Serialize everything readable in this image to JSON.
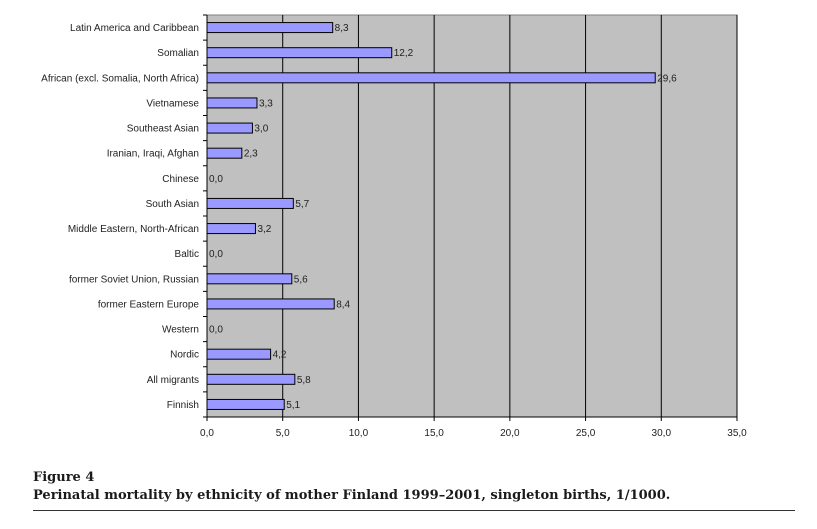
{
  "caption": {
    "figure_label": "Figure 4",
    "title": "Perinatal mortality by ethnicity of mother Finland 1999–2001, singleton births, 1/1000."
  },
  "chart_data": {
    "type": "bar",
    "orientation": "horizontal",
    "categories": [
      "Latin America and Caribbean",
      "Somalian",
      "African (excl. Somalia, North Africa)",
      "Vietnamese",
      "Southeast Asian",
      "Iranian, Iraqi, Afghan",
      "Chinese",
      "South Asian",
      "Middle Eastern, North-African",
      "Baltic",
      "former Soviet Union, Russian",
      "former Eastern Europe",
      "Western",
      "Nordic",
      "All migrants",
      "Finnish"
    ],
    "values": [
      8.3,
      12.2,
      29.6,
      3.3,
      3.0,
      2.3,
      0.0,
      5.7,
      3.2,
      0.0,
      5.6,
      8.4,
      0.0,
      4.2,
      5.8,
      5.1
    ],
    "value_labels": [
      "8,3",
      "12,2",
      "29,6",
      "3,3",
      "3,0",
      "2,3",
      "0,0",
      "5,7",
      "3,2",
      "0,0",
      "5,6",
      "8,4",
      "0,0",
      "4,2",
      "5,8",
      "5,1"
    ],
    "xlim": [
      0,
      35
    ],
    "ticks": [
      0,
      5,
      10,
      15,
      20,
      25,
      30,
      35
    ],
    "tick_labels": [
      "0,0",
      "5,0",
      "10,0",
      "15,0",
      "20,0",
      "25,0",
      "30,0",
      "35,0"
    ],
    "grid": "vertical",
    "colors": {
      "bar": "#9999ff",
      "plot_bg": "#c0c0c0",
      "gridline": "#000000"
    }
  }
}
